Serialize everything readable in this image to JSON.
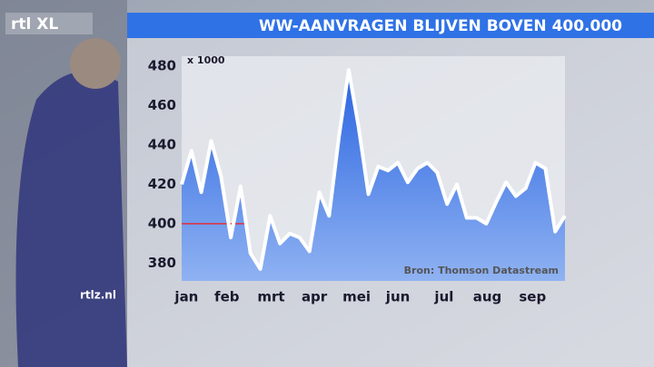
{
  "chart_data": {
    "type": "area",
    "title": "WW-AANVRAGEN BLIJVEN BOVEN 400.000",
    "unit_label": "x 1000",
    "source": "Bron: Thomson Datastream",
    "logo": "rtl XL",
    "site": "rtlz.nl",
    "values": [
      420,
      437,
      416,
      442,
      424,
      393,
      419,
      385,
      377,
      404,
      390,
      395,
      393,
      386,
      416,
      404,
      444,
      478,
      449,
      415,
      429,
      427,
      431,
      421,
      428,
      431,
      426,
      410,
      420,
      403,
      403,
      400,
      411,
      421,
      414,
      418,
      431,
      428,
      396,
      404
    ],
    "color": "#2f6fe0",
    "line_color": "#ffffff",
    "reference_value": 400,
    "reference_color": "#e0303a",
    "xlim": [
      0,
      39
    ],
    "xticks": [
      {
        "value": 0.5,
        "label": "jan"
      },
      {
        "value": 4.6,
        "label": "feb"
      },
      {
        "value": 9.1,
        "label": "mrt"
      },
      {
        "value": 13.5,
        "label": "apr"
      },
      {
        "value": 17.8,
        "label": "mei"
      },
      {
        "value": 22,
        "label": "jun"
      },
      {
        "value": 26.7,
        "label": "jul"
      },
      {
        "value": 31.1,
        "label": "aug"
      },
      {
        "value": 35.7,
        "label": "sep"
      }
    ],
    "ylim": [
      371,
      485
    ],
    "yticks": [
      380,
      400,
      420,
      440,
      460,
      480
    ]
  }
}
